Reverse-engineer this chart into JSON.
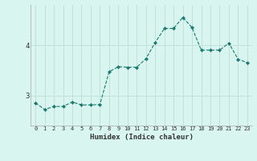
{
  "xlabel": "Humidex (Indice chaleur)",
  "x": [
    0,
    1,
    2,
    3,
    4,
    5,
    6,
    7,
    8,
    9,
    10,
    11,
    12,
    13,
    14,
    15,
    16,
    17,
    18,
    19,
    20,
    21,
    22,
    23
  ],
  "y": [
    2.85,
    2.72,
    2.78,
    2.78,
    2.87,
    2.81,
    2.81,
    2.82,
    3.47,
    3.57,
    3.56,
    3.56,
    3.73,
    4.05,
    4.33,
    4.33,
    4.55,
    4.35,
    3.9,
    3.9,
    3.9,
    4.04,
    3.72,
    3.65
  ],
  "line_color": "#1a7a6e",
  "bg_color": "#d8f5f0",
  "grid_color": "#c0ddd9",
  "tick_label_color": "#333333",
  "yticks": [
    3,
    4
  ],
  "ylim": [
    2.4,
    4.8
  ],
  "xlim": [
    -0.5,
    23.5
  ],
  "figsize": [
    3.2,
    2.0
  ],
  "dpi": 100,
  "xtick_fontsize": 5.0,
  "ytick_fontsize": 6.5,
  "xlabel_fontsize": 6.5
}
